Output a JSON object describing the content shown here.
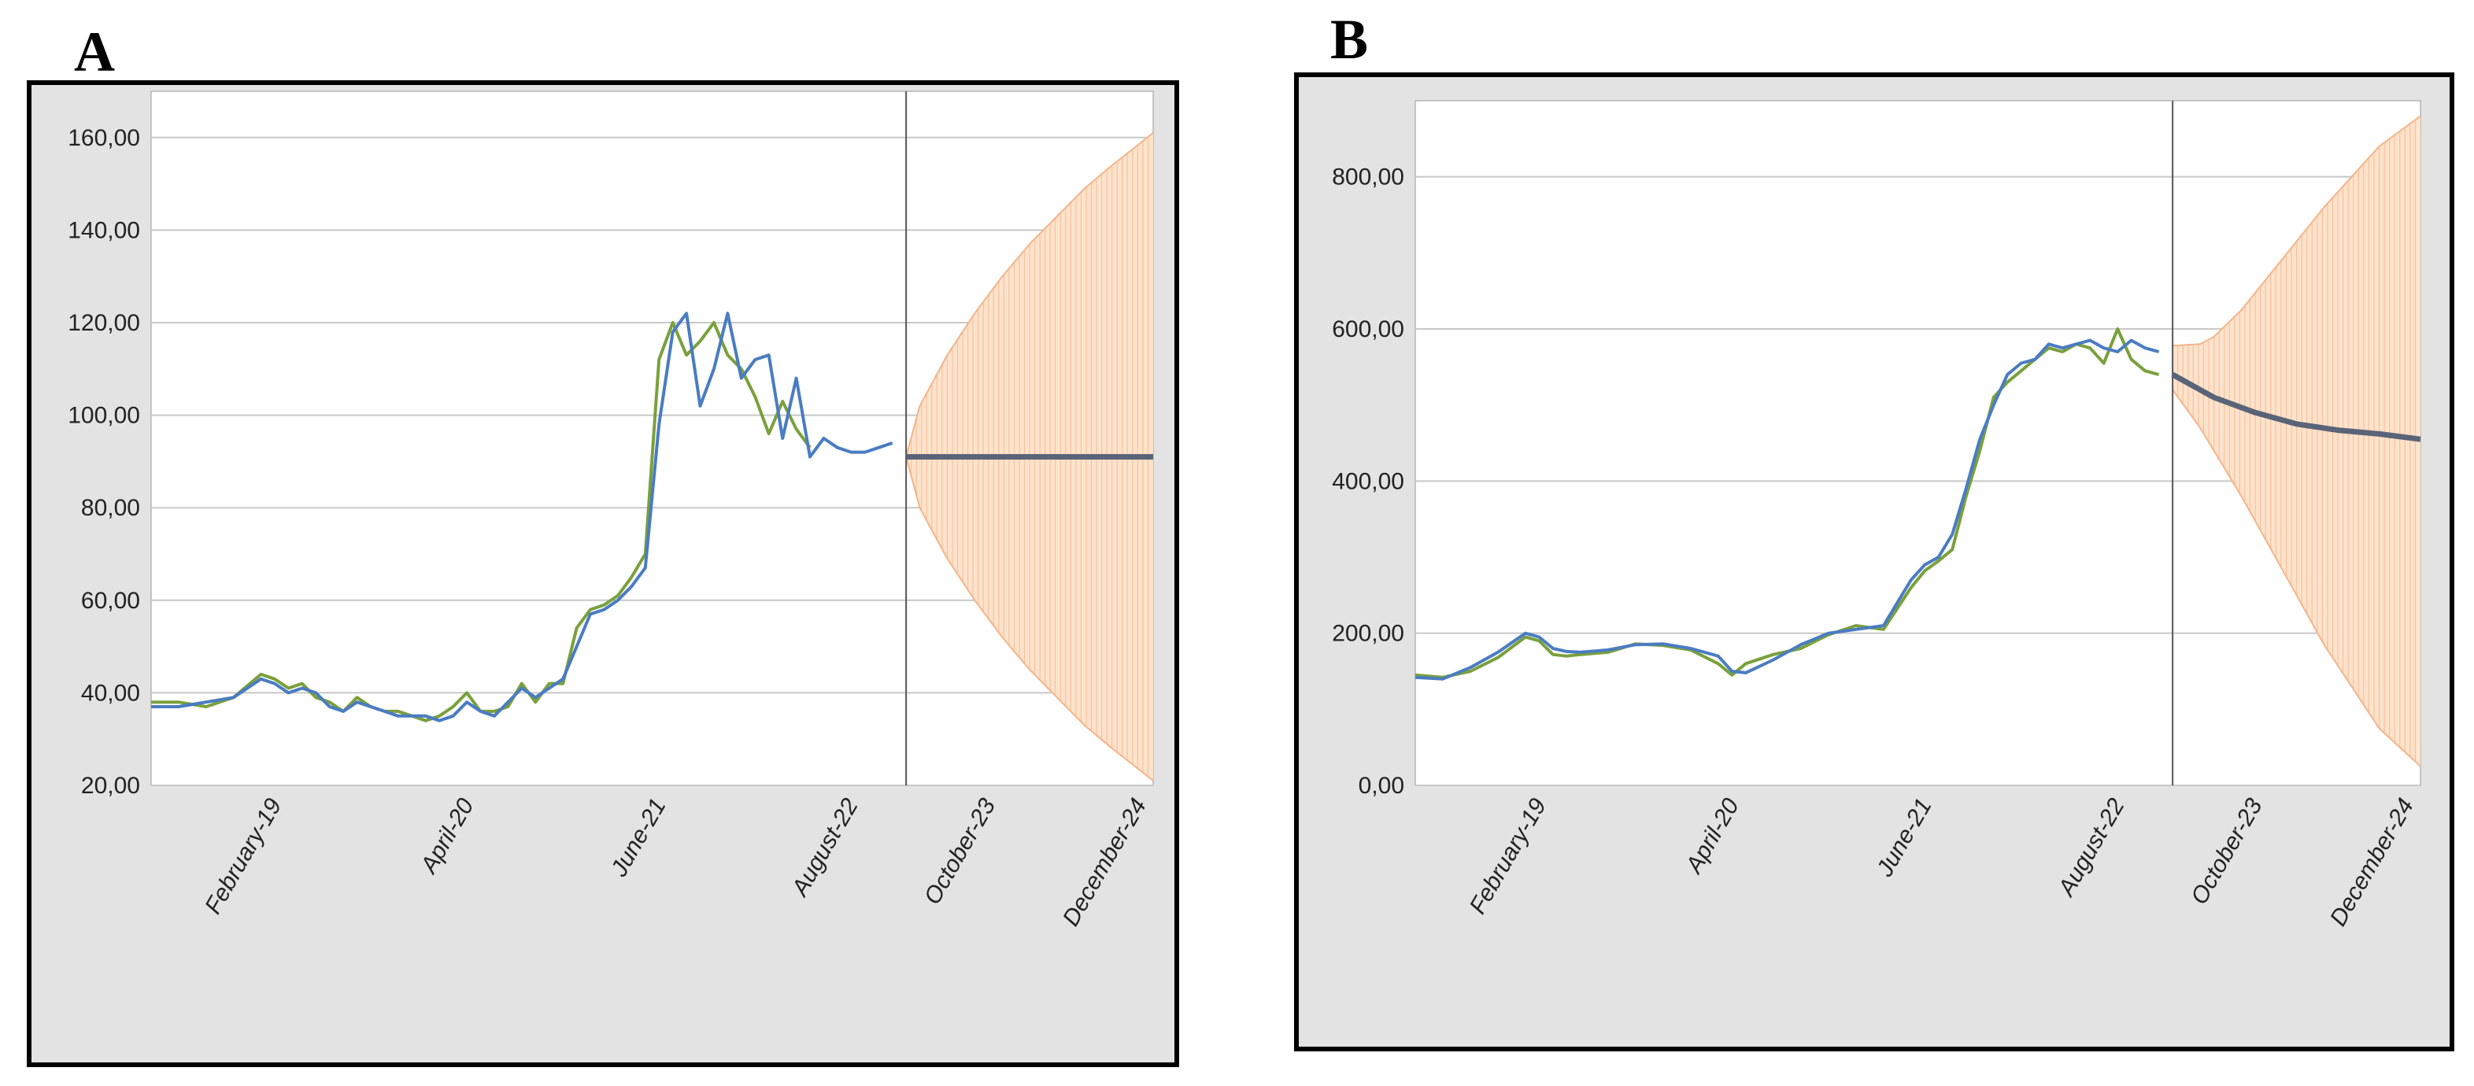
{
  "panels": {
    "a": {
      "letter": "A"
    },
    "b": {
      "letter": "B"
    }
  },
  "colors": {
    "plot_bg": "#ffffff",
    "frame_bg": "#e3e3e3",
    "grid": "#c8c8c8",
    "actual_series": "#4a7cc2",
    "fitted_series": "#7aa03c",
    "forecast_line": "#5a6478",
    "confidence_fill": "#fde3cc",
    "confidence_edge": "#f5b48a",
    "divider": "#555555"
  },
  "chart_data": [
    {
      "type": "line",
      "panel": "A",
      "title": "",
      "xlabel": "",
      "ylabel": "",
      "ylim": [
        20,
        170
      ],
      "yticks": [
        20,
        40,
        60,
        80,
        100,
        120,
        140,
        160
      ],
      "ytick_labels": [
        "20,00",
        "40,00",
        "60,00",
        "80,00",
        "100,00",
        "120,00",
        "140,00",
        "160,00"
      ],
      "xlim": [
        0,
        73
      ],
      "xticks": [
        10,
        24,
        38,
        52,
        62,
        73
      ],
      "xtick_labels": [
        "February-19",
        "April-20",
        "June-21",
        "August-22",
        "October-23",
        "December-24"
      ],
      "forecast_start": 55,
      "grid": true,
      "series": [
        {
          "role": "actual",
          "x": [
            0,
            2,
            4,
            6,
            8,
            9,
            10,
            11,
            12,
            13,
            14,
            15,
            16,
            17,
            18,
            19,
            20,
            21,
            22,
            23,
            24,
            25,
            26,
            27,
            28,
            29,
            30,
            31,
            32,
            33,
            34,
            35,
            36,
            37,
            38,
            39,
            40,
            41,
            42,
            43,
            44,
            45,
            46,
            47,
            48,
            49,
            50,
            51,
            52,
            53,
            54
          ],
          "values": [
            37,
            37,
            38,
            39,
            43,
            42,
            40,
            41,
            40,
            37,
            36,
            38,
            37,
            36,
            35,
            35,
            35,
            34,
            35,
            38,
            36,
            35,
            38,
            41,
            39,
            41,
            43,
            50,
            57,
            58,
            60,
            63,
            67,
            98,
            118,
            122,
            102,
            110,
            122,
            108,
            112,
            113,
            95,
            108,
            91,
            95,
            93,
            92,
            92,
            93,
            94
          ]
        },
        {
          "role": "fitted",
          "x": [
            0,
            2,
            4,
            6,
            8,
            9,
            10,
            11,
            12,
            13,
            14,
            15,
            16,
            17,
            18,
            19,
            20,
            21,
            22,
            23,
            24,
            25,
            26,
            27,
            28,
            29,
            30,
            31,
            32,
            33,
            34,
            35,
            36,
            37,
            38,
            39,
            40,
            41,
            42,
            43,
            44,
            45,
            46,
            47,
            48
          ],
          "values": [
            38,
            38,
            37,
            39,
            44,
            43,
            41,
            42,
            39,
            38,
            36,
            39,
            37,
            36,
            36,
            35,
            34,
            35,
            37,
            40,
            36,
            36,
            37,
            42,
            38,
            42,
            42,
            54,
            58,
            59,
            61,
            65,
            70,
            112,
            120,
            113,
            116,
            120,
            113,
            110,
            104,
            96,
            103,
            97,
            93
          ]
        },
        {
          "role": "forecast",
          "x": [
            55,
            73
          ],
          "values": [
            91,
            91
          ]
        },
        {
          "role": "upper_bound",
          "x": [
            55,
            56,
            58,
            60,
            62,
            64,
            66,
            68,
            70,
            73
          ],
          "values": [
            91,
            102,
            113,
            122,
            130,
            137,
            143,
            149,
            154,
            161
          ]
        },
        {
          "role": "lower_bound",
          "x": [
            55,
            56,
            58,
            60,
            62,
            64,
            66,
            68,
            70,
            73
          ],
          "values": [
            91,
            80,
            69,
            60,
            52,
            45,
            39,
            33,
            28,
            21
          ]
        }
      ]
    },
    {
      "type": "line",
      "panel": "B",
      "title": "",
      "xlabel": "",
      "ylabel": "",
      "ylim": [
        0,
        900
      ],
      "yticks": [
        0,
        200,
        400,
        600,
        800
      ],
      "ytick_labels": [
        "0,00",
        "200,00",
        "400,00",
        "600,00",
        "800,00"
      ],
      "xlim": [
        0,
        73
      ],
      "xticks": [
        10,
        24,
        38,
        52,
        62,
        73
      ],
      "xtick_labels": [
        "February-19",
        "April-20",
        "June-21",
        "August-22",
        "October-23",
        "December-24"
      ],
      "forecast_start": 55,
      "grid": true,
      "series": [
        {
          "role": "actual",
          "x": [
            0,
            2,
            4,
            6,
            8,
            9,
            10,
            11,
            12,
            14,
            16,
            18,
            20,
            22,
            23,
            24,
            26,
            28,
            30,
            32,
            34,
            36,
            37,
            38,
            39,
            40,
            41,
            42,
            43,
            44,
            45,
            46,
            47,
            48,
            49,
            50,
            51,
            52,
            53,
            54
          ],
          "values": [
            142,
            140,
            155,
            175,
            200,
            195,
            180,
            176,
            175,
            178,
            185,
            186,
            180,
            170,
            150,
            148,
            165,
            185,
            200,
            205,
            210,
            270,
            290,
            300,
            330,
            390,
            455,
            500,
            540,
            555,
            560,
            580,
            575,
            580,
            585,
            575,
            570,
            585,
            575,
            570
          ]
        },
        {
          "role": "fitted",
          "x": [
            0,
            2,
            4,
            6,
            8,
            9,
            10,
            11,
            12,
            14,
            16,
            18,
            20,
            22,
            23,
            24,
            26,
            28,
            30,
            32,
            34,
            36,
            37,
            38,
            39,
            40,
            41,
            42,
            43,
            44,
            45,
            46,
            47,
            48,
            49,
            50,
            51,
            52,
            53,
            54
          ],
          "values": [
            145,
            142,
            150,
            168,
            195,
            190,
            172,
            170,
            172,
            175,
            186,
            184,
            178,
            160,
            145,
            160,
            172,
            180,
            198,
            210,
            205,
            260,
            282,
            295,
            310,
            380,
            440,
            510,
            530,
            545,
            560,
            575,
            570,
            580,
            575,
            555,
            600,
            560,
            545,
            540
          ]
        },
        {
          "role": "forecast",
          "x": [
            55,
            58,
            61,
            64,
            67,
            70,
            73
          ],
          "values": [
            540,
            510,
            490,
            475,
            467,
            462,
            455
          ]
        },
        {
          "role": "upper_bound",
          "x": [
            55,
            57,
            58,
            60,
            62,
            64,
            66,
            68,
            70,
            73
          ],
          "values": [
            578,
            580,
            590,
            625,
            670,
            715,
            760,
            800,
            840,
            880
          ]
        },
        {
          "role": "lower_bound",
          "x": [
            55,
            57,
            58,
            60,
            62,
            64,
            66,
            68,
            70,
            73
          ],
          "values": [
            520,
            470,
            440,
            380,
            315,
            250,
            185,
            130,
            75,
            25
          ]
        }
      ]
    }
  ]
}
